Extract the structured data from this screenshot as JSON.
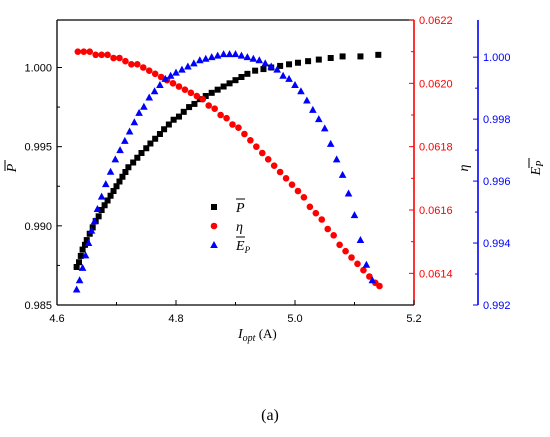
{
  "chart_data": {
    "type": "scatter",
    "caption": "(a)",
    "xlabel_main": "I",
    "xlabel_sub": "opt",
    "xlabel_unit": "(A)",
    "xlim": [
      4.6,
      5.2
    ],
    "x_ticks": [
      "4.6",
      "4.8",
      "5.0",
      "5.2"
    ],
    "axes": [
      {
        "id": "left",
        "label": "P",
        "label_overbar": true,
        "color": "#000000",
        "ylim": [
          0.985,
          1.003
        ],
        "ticks": [
          "0.985",
          "0.990",
          "0.995",
          "1.000"
        ]
      },
      {
        "id": "right1",
        "label": "η",
        "color": "#ff0000",
        "ylim": [
          0.0613,
          0.0622
        ],
        "ticks": [
          "0.0614",
          "0.0616",
          "0.0618",
          "0.0620",
          "0.0622"
        ]
      },
      {
        "id": "right2",
        "label": "E",
        "label_sub": "P",
        "label_overbar": true,
        "color": "#0000ff",
        "ylim": [
          0.992,
          1.0012
        ],
        "ticks": [
          "0.992",
          "0.994",
          "0.996",
          "0.998",
          "1.000"
        ]
      }
    ],
    "series": [
      {
        "name": "P",
        "name_overbar": true,
        "axis": "left",
        "color": "#000000",
        "marker": "square",
        "points": [
          [
            4.633,
            0.9874
          ],
          [
            4.637,
            0.9877
          ],
          [
            4.64,
            0.9881
          ],
          [
            4.643,
            0.9885
          ],
          [
            4.647,
            0.9888
          ],
          [
            4.65,
            0.9891
          ],
          [
            4.655,
            0.9895
          ],
          [
            4.66,
            0.9899
          ],
          [
            4.665,
            0.9903
          ],
          [
            4.67,
            0.9906
          ],
          [
            4.675,
            0.991
          ],
          [
            4.68,
            0.9913
          ],
          [
            4.685,
            0.9916
          ],
          [
            4.69,
            0.9919
          ],
          [
            4.695,
            0.9922
          ],
          [
            4.7,
            0.9925
          ],
          [
            4.705,
            0.9928
          ],
          [
            4.71,
            0.9931
          ],
          [
            4.715,
            0.9934
          ],
          [
            4.72,
            0.9937
          ],
          [
            4.728,
            0.994
          ],
          [
            4.735,
            0.9943
          ],
          [
            4.742,
            0.9946
          ],
          [
            4.75,
            0.9949
          ],
          [
            4.757,
            0.9952
          ],
          [
            4.765,
            0.9955
          ],
          [
            4.773,
            0.9958
          ],
          [
            4.78,
            0.9961
          ],
          [
            4.788,
            0.9964
          ],
          [
            4.796,
            0.9967
          ],
          [
            4.805,
            0.9969
          ],
          [
            4.813,
            0.9972
          ],
          [
            4.822,
            0.9975
          ],
          [
            4.831,
            0.9977
          ],
          [
            4.84,
            0.998
          ],
          [
            4.85,
            0.9982
          ],
          [
            4.86,
            0.9984
          ],
          [
            4.87,
            0.9986
          ],
          [
            4.88,
            0.9988
          ],
          [
            4.89,
            0.999
          ],
          [
            4.9,
            0.9992
          ],
          [
            4.91,
            0.9994
          ],
          [
            4.92,
            0.9996
          ],
          [
            4.933,
            0.9998
          ],
          [
            4.947,
            0.9999
          ],
          [
            4.96,
            1.0
          ],
          [
            4.975,
            1.0001
          ],
          [
            4.99,
            1.0002
          ],
          [
            5.005,
            1.0003
          ],
          [
            5.022,
            1.0004
          ],
          [
            5.04,
            1.0005
          ],
          [
            5.06,
            1.0006
          ],
          [
            5.08,
            1.0007
          ],
          [
            5.11,
            1.0007
          ],
          [
            5.14,
            1.0008
          ]
        ]
      },
      {
        "name": "η",
        "axis": "right1",
        "color": "#ff0000",
        "marker": "circle",
        "points": [
          [
            4.635,
            0.0621
          ],
          [
            4.645,
            0.0621
          ],
          [
            4.655,
            0.0621
          ],
          [
            4.665,
            0.06209
          ],
          [
            4.675,
            0.06209
          ],
          [
            4.685,
            0.06209
          ],
          [
            4.695,
            0.06208
          ],
          [
            4.705,
            0.06208
          ],
          [
            4.715,
            0.06207
          ],
          [
            4.725,
            0.06206
          ],
          [
            4.735,
            0.06206
          ],
          [
            4.745,
            0.06205
          ],
          [
            4.755,
            0.06204
          ],
          [
            4.765,
            0.06203
          ],
          [
            4.775,
            0.06202
          ],
          [
            4.785,
            0.06201
          ],
          [
            4.795,
            0.062
          ],
          [
            4.805,
            0.06199
          ],
          [
            4.815,
            0.06198
          ],
          [
            4.825,
            0.06197
          ],
          [
            4.835,
            0.06196
          ],
          [
            4.845,
            0.06195
          ],
          [
            4.855,
            0.06193
          ],
          [
            4.865,
            0.06192
          ],
          [
            4.875,
            0.0619
          ],
          [
            4.885,
            0.06189
          ],
          [
            4.895,
            0.06187
          ],
          [
            4.905,
            0.06186
          ],
          [
            4.915,
            0.06184
          ],
          [
            4.925,
            0.06182
          ],
          [
            4.935,
            0.0618
          ],
          [
            4.945,
            0.06178
          ],
          [
            4.955,
            0.06176
          ],
          [
            4.965,
            0.06174
          ],
          [
            4.975,
            0.06172
          ],
          [
            4.985,
            0.0617
          ],
          [
            4.995,
            0.06168
          ],
          [
            5.005,
            0.06166
          ],
          [
            5.015,
            0.06164
          ],
          [
            5.025,
            0.06161
          ],
          [
            5.035,
            0.06159
          ],
          [
            5.045,
            0.06157
          ],
          [
            5.055,
            0.06154
          ],
          [
            5.065,
            0.06152
          ],
          [
            5.075,
            0.06149
          ],
          [
            5.085,
            0.06147
          ],
          [
            5.095,
            0.06145
          ],
          [
            5.105,
            0.06143
          ],
          [
            5.115,
            0.06141
          ],
          [
            5.125,
            0.06139
          ],
          [
            5.135,
            0.06137
          ],
          [
            5.142,
            0.06136
          ]
        ]
      },
      {
        "name": "E",
        "name_sub": "P",
        "name_overbar": true,
        "axis": "right2",
        "color": "#0000ff",
        "marker": "triangle",
        "points": [
          [
            4.633,
            0.9925
          ],
          [
            4.638,
            0.9928
          ],
          [
            4.643,
            0.9932
          ],
          [
            4.648,
            0.9936
          ],
          [
            4.653,
            0.994
          ],
          [
            4.658,
            0.9944
          ],
          [
            4.663,
            0.9947
          ],
          [
            4.668,
            0.9951
          ],
          [
            4.675,
            0.9955
          ],
          [
            4.682,
            0.9959
          ],
          [
            4.69,
            0.9963
          ],
          [
            4.698,
            0.9967
          ],
          [
            4.706,
            0.997
          ],
          [
            4.714,
            0.9973
          ],
          [
            4.722,
            0.9976
          ],
          [
            4.73,
            0.9979
          ],
          [
            4.738,
            0.9982
          ],
          [
            4.746,
            0.9984
          ],
          [
            4.755,
            0.9987
          ],
          [
            4.764,
            0.9989
          ],
          [
            4.773,
            0.9991
          ],
          [
            4.782,
            0.9993
          ],
          [
            4.791,
            0.9994
          ],
          [
            4.8,
            0.9995
          ],
          [
            4.81,
            0.9996
          ],
          [
            4.82,
            0.9997
          ],
          [
            4.83,
            0.9998
          ],
          [
            4.84,
            0.9999
          ],
          [
            4.85,
            0.99995
          ],
          [
            4.86,
            1.0
          ],
          [
            4.87,
            1.00005
          ],
          [
            4.88,
            1.0001
          ],
          [
            4.89,
            1.0001
          ],
          [
            4.9,
            1.0001
          ],
          [
            4.91,
            1.00005
          ],
          [
            4.92,
            1.0
          ],
          [
            4.93,
            0.99995
          ],
          [
            4.94,
            0.9999
          ],
          [
            4.95,
            0.9998
          ],
          [
            4.96,
            0.9997
          ],
          [
            4.97,
            0.9996
          ],
          [
            4.98,
            0.9994
          ],
          [
            4.99,
            0.9993
          ],
          [
            5.0,
            0.9991
          ],
          [
            5.01,
            0.9989
          ],
          [
            5.02,
            0.9986
          ],
          [
            5.03,
            0.9983
          ],
          [
            5.04,
            0.998
          ],
          [
            5.05,
            0.9977
          ],
          [
            5.06,
            0.9972
          ],
          [
            5.07,
            0.9967
          ],
          [
            5.08,
            0.9962
          ],
          [
            5.09,
            0.9956
          ],
          [
            5.1,
            0.9949
          ],
          [
            5.11,
            0.9941
          ],
          [
            5.12,
            0.9933
          ],
          [
            5.13,
            0.9928
          ]
        ]
      }
    ],
    "legend": {
      "placement": "center"
    }
  }
}
